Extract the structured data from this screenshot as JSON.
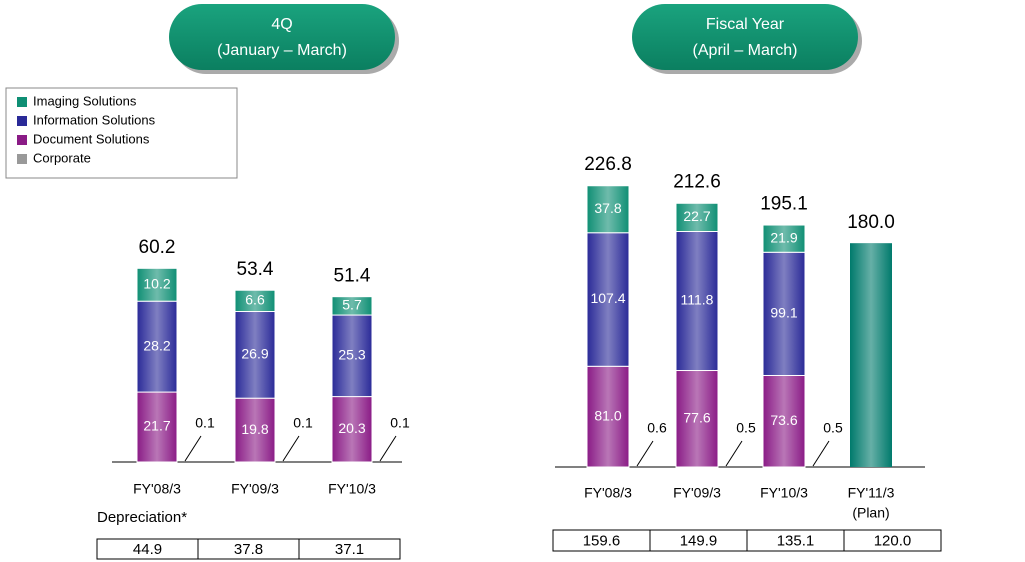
{
  "chart_data": [
    {
      "type": "stacked_bar",
      "header": [
        "4Q",
        "(January – March)"
      ],
      "categories": [
        "FY'08/3",
        "FY'09/3",
        "FY'10/3"
      ],
      "series": [
        {
          "name": "Imaging Solutions",
          "color": "#0f8f74",
          "values": [
            10.2,
            6.6,
            5.7
          ],
          "value_labels": [
            "10.2",
            "6.6",
            "5.7"
          ]
        },
        {
          "name": "Information Solutions",
          "color": "#2a2a98",
          "values": [
            28.2,
            26.9,
            25.3
          ],
          "value_labels": [
            "28.2",
            "26.9",
            "25.3"
          ]
        },
        {
          "name": "Document Solutions",
          "color": "#8a1b86",
          "values": [
            21.7,
            19.8,
            20.3
          ],
          "value_labels": [
            "21.7",
            "19.8",
            "20.3"
          ]
        },
        {
          "name": "Corporate",
          "color": "#999999",
          "values": [
            0.1,
            0.1,
            0.1
          ],
          "value_labels": [
            "0.1",
            "0.1",
            "0.1"
          ]
        }
      ],
      "totals": {
        "values": [
          60.2,
          53.4,
          51.4
        ],
        "value_labels": [
          "60.2",
          "53.4",
          "51.4"
        ]
      },
      "table": {
        "label": "Depreciation*",
        "values": [
          44.9,
          37.8,
          37.1
        ],
        "value_labels": [
          "44.9",
          "37.8",
          "37.1"
        ]
      }
    },
    {
      "type": "stacked_bar",
      "header": [
        "Fiscal Year",
        "(April – March)"
      ],
      "categories": [
        "FY'08/3",
        "FY'09/3",
        "FY'10/3",
        "FY'11/3"
      ],
      "plan_label": "(Plan)",
      "plan_color": "#007a6c",
      "series": [
        {
          "name": "Imaging Solutions",
          "color": "#0f8f74",
          "values": [
            37.8,
            22.7,
            21.9,
            null
          ],
          "value_labels": [
            "37.8",
            "22.7",
            "21.9",
            null
          ]
        },
        {
          "name": "Information Solutions",
          "color": "#2a2a98",
          "values": [
            107.4,
            111.8,
            99.1,
            null
          ],
          "value_labels": [
            "107.4",
            "111.8",
            "99.1",
            null
          ]
        },
        {
          "name": "Document Solutions",
          "color": "#8a1b86",
          "values": [
            81.0,
            77.6,
            73.6,
            null
          ],
          "value_labels": [
            "81.0",
            "77.6",
            "73.6",
            null
          ]
        },
        {
          "name": "Corporate",
          "color": "#999999",
          "values": [
            0.6,
            0.5,
            0.5,
            null
          ],
          "value_labels": [
            "0.6",
            "0.5",
            "0.5",
            null
          ]
        }
      ],
      "totals": {
        "values": [
          226.8,
          212.6,
          195.1,
          180.0
        ],
        "value_labels": [
          "226.8",
          "212.6",
          "195.1",
          "180.0"
        ]
      },
      "table": {
        "values": [
          159.6,
          149.9,
          135.1,
          120.0
        ],
        "value_labels": [
          "159.6",
          "149.9",
          "135.1",
          "120.0"
        ]
      }
    }
  ]
}
